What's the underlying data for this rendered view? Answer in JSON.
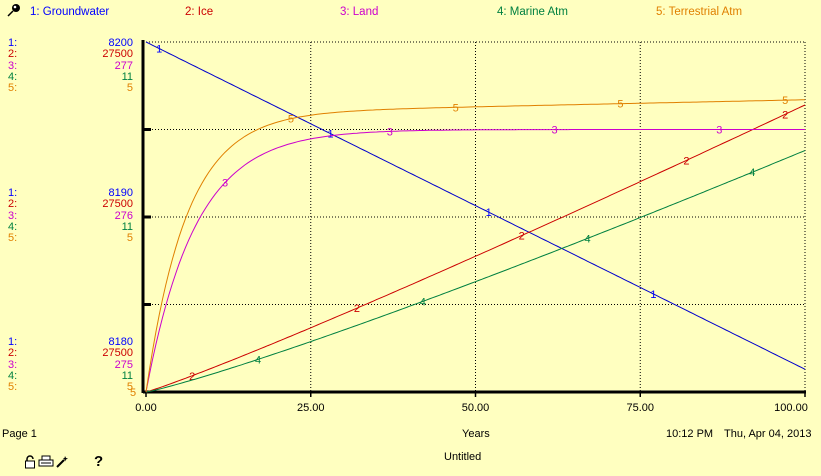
{
  "chart_data": {
    "type": "line",
    "xlabel": "Years",
    "xlim": [
      0,
      100
    ],
    "x_ticks": [
      "0.00",
      "25.00",
      "50.00",
      "75.00",
      "100.00"
    ],
    "grid": "dotted",
    "legend_position": "top",
    "series": [
      {
        "id": "1",
        "name": "1: Groundwater",
        "color": "#0000cc",
        "label_color": "#0000ff",
        "axis_labels": {
          "top": "8200",
          "mid": "8190",
          "bottom": "8180"
        }
      },
      {
        "id": "2",
        "name": "2: Ice",
        "color": "#cc0000",
        "label_color": "#cc0000",
        "axis_labels": {
          "top": "27500",
          "mid": "27500",
          "bottom": "27500"
        }
      },
      {
        "id": "3",
        "name": "3: Land",
        "color": "#cc00cc",
        "label_color": "#cc00cc",
        "axis_labels": {
          "top": "277",
          "mid": "276",
          "bottom": "275"
        }
      },
      {
        "id": "4",
        "name": "4: Marine Atm",
        "color": "#008040",
        "label_color": "#008040",
        "axis_labels": {
          "top": "11",
          "mid": "11",
          "bottom": "11"
        }
      },
      {
        "id": "5",
        "name": "5: Terrestrial Atm",
        "color": "#e08000",
        "label_color": "#e08000",
        "axis_labels": {
          "top": "5",
          "mid": "5",
          "bottom": "5"
        }
      }
    ]
  },
  "footer": {
    "page": "Page 1",
    "xlabel": "Years",
    "time": "10:12 PM",
    "date": "Thu, Apr 04, 2013",
    "doc_title": "Untitled",
    "help": "?"
  }
}
